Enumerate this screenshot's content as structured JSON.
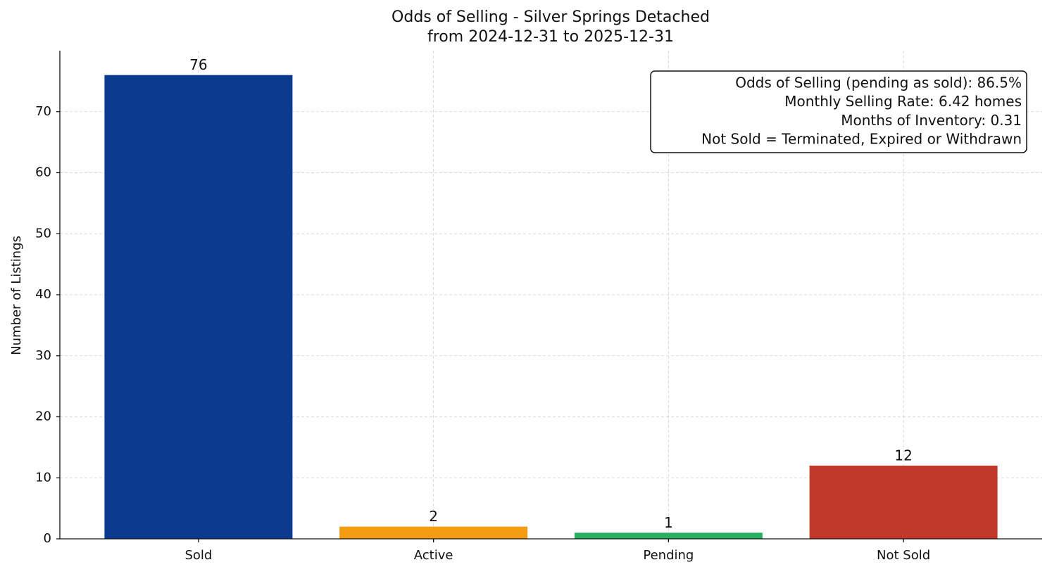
{
  "chart_data": {
    "type": "bar",
    "title": "Odds of Selling - Silver Springs Detached",
    "subtitle": "from 2024-12-31 to 2025-12-31",
    "y_label": "Number of Listings",
    "categories": [
      "Sold",
      "Active",
      "Pending",
      "Not Sold"
    ],
    "values": [
      76,
      2,
      1,
      12
    ],
    "colors": [
      "#0b3a8e",
      "#f39c12",
      "#27ae60",
      "#c0392b"
    ],
    "ylim": [
      0,
      80
    ],
    "yticks": [
      0,
      10,
      20,
      30,
      40,
      50,
      60,
      70
    ],
    "grid": true,
    "annotation": [
      "Odds of Selling (pending as sold): 86.5%",
      "Monthly Selling Rate: 6.42 homes",
      "Months of Inventory: 0.31",
      "Not Sold = Terminated, Expired or Withdrawn"
    ]
  }
}
